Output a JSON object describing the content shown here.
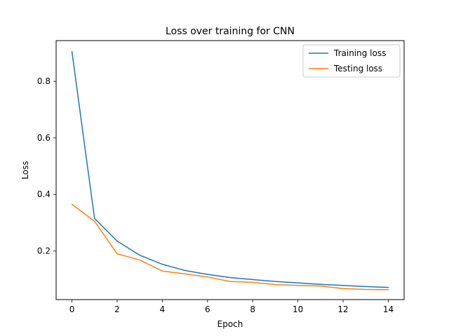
{
  "chart_data": {
    "type": "line",
    "title": "Loss over training for CNN",
    "xlabel": "Epoch",
    "ylabel": "Loss",
    "xlim": [
      -0.7,
      14.7
    ],
    "ylim": [
      0.028,
      0.944
    ],
    "xticks": [
      0,
      2,
      4,
      6,
      8,
      10,
      12,
      14
    ],
    "xtick_labels": [
      "0",
      "2",
      "4",
      "6",
      "8",
      "10",
      "12",
      "14"
    ],
    "yticks": [
      0.2,
      0.4,
      0.6,
      0.8
    ],
    "ytick_labels": [
      "0.2",
      "0.4",
      "0.6",
      "0.8"
    ],
    "grid": false,
    "legend_position": "top-right",
    "x": [
      0,
      1,
      2,
      3,
      4,
      5,
      6,
      7,
      8,
      9,
      10,
      11,
      12,
      13,
      14
    ],
    "series": [
      {
        "name": "Training loss",
        "color": "#1f77b4",
        "values": [
          0.905,
          0.315,
          0.235,
          0.185,
          0.153,
          0.131,
          0.117,
          0.106,
          0.099,
          0.092,
          0.087,
          0.082,
          0.078,
          0.074,
          0.071
        ]
      },
      {
        "name": "Testing loss",
        "color": "#ff7f0e",
        "values": [
          0.365,
          0.305,
          0.19,
          0.168,
          0.129,
          0.119,
          0.108,
          0.092,
          0.089,
          0.081,
          0.078,
          0.076,
          0.067,
          0.064,
          0.063
        ]
      }
    ]
  }
}
